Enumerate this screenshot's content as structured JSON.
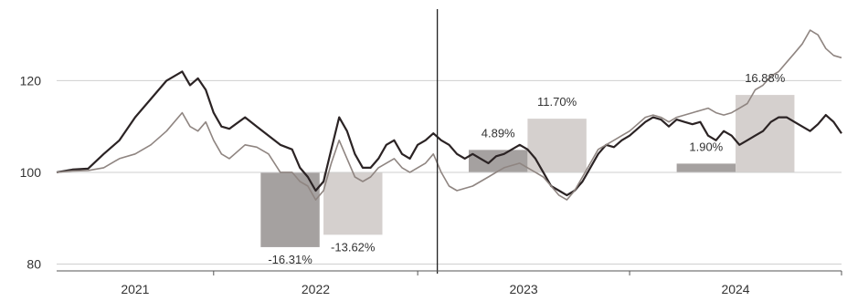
{
  "chart_data": {
    "type": "line",
    "y_ticks": [
      {
        "value": 80,
        "label": "80"
      },
      {
        "value": 100,
        "label": "100"
      },
      {
        "value": 120,
        "label": "120"
      }
    ],
    "ylim": [
      78.5,
      136
    ],
    "x_years": [
      {
        "label": "2021",
        "start": 0,
        "end": 0.2
      },
      {
        "label": "2022",
        "start": 0.2,
        "end": 0.46
      },
      {
        "label": "2023",
        "start": 0.46,
        "end": 0.73
      },
      {
        "label": "2024",
        "start": 0.73,
        "end": 1
      }
    ],
    "split_at": 0.485,
    "grid": true,
    "series": [
      {
        "color": "#2b2324",
        "points": [
          [
            0,
            100
          ],
          [
            0.02,
            100.6
          ],
          [
            0.04,
            100.8
          ],
          [
            0.06,
            104
          ],
          [
            0.08,
            107
          ],
          [
            0.1,
            112
          ],
          [
            0.12,
            116
          ],
          [
            0.14,
            120
          ],
          [
            0.16,
            122
          ],
          [
            0.17,
            119
          ],
          [
            0.18,
            120.5
          ],
          [
            0.19,
            118
          ],
          [
            0.2,
            113
          ],
          [
            0.21,
            110
          ],
          [
            0.22,
            109.5
          ],
          [
            0.24,
            112
          ],
          [
            0.255,
            110
          ],
          [
            0.27,
            108
          ],
          [
            0.285,
            106
          ],
          [
            0.3,
            105
          ],
          [
            0.31,
            101
          ],
          [
            0.32,
            99
          ],
          [
            0.33,
            96
          ],
          [
            0.34,
            98
          ],
          [
            0.35,
            105
          ],
          [
            0.36,
            112
          ],
          [
            0.37,
            109
          ],
          [
            0.38,
            104
          ],
          [
            0.39,
            101
          ],
          [
            0.4,
            101
          ],
          [
            0.41,
            103
          ],
          [
            0.42,
            106
          ],
          [
            0.43,
            107
          ],
          [
            0.44,
            104
          ],
          [
            0.45,
            103
          ],
          [
            0.46,
            106
          ],
          [
            0.47,
            107
          ],
          [
            0.48,
            108.5
          ],
          [
            0.49,
            107
          ],
          [
            0.5,
            106
          ],
          [
            0.51,
            104
          ],
          [
            0.52,
            103
          ],
          [
            0.53,
            104
          ],
          [
            0.54,
            103
          ],
          [
            0.55,
            102
          ],
          [
            0.56,
            103.5
          ],
          [
            0.57,
            104
          ],
          [
            0.58,
            105
          ],
          [
            0.59,
            106
          ],
          [
            0.6,
            105
          ],
          [
            0.61,
            103
          ],
          [
            0.62,
            100
          ],
          [
            0.63,
            97
          ],
          [
            0.64,
            96
          ],
          [
            0.65,
            95
          ],
          [
            0.66,
            96
          ],
          [
            0.67,
            98
          ],
          [
            0.68,
            101
          ],
          [
            0.69,
            104
          ],
          [
            0.7,
            106
          ],
          [
            0.71,
            105.5
          ],
          [
            0.72,
            107
          ],
          [
            0.73,
            108
          ],
          [
            0.74,
            109.5
          ],
          [
            0.75,
            111
          ],
          [
            0.76,
            112
          ],
          [
            0.77,
            111.5
          ],
          [
            0.78,
            110
          ],
          [
            0.79,
            111.5
          ],
          [
            0.8,
            111
          ],
          [
            0.81,
            110.5
          ],
          [
            0.82,
            111
          ],
          [
            0.83,
            108
          ],
          [
            0.84,
            107
          ],
          [
            0.85,
            109
          ],
          [
            0.86,
            108
          ],
          [
            0.87,
            106
          ],
          [
            0.88,
            107
          ],
          [
            0.89,
            108
          ],
          [
            0.9,
            109
          ],
          [
            0.91,
            111
          ],
          [
            0.92,
            112
          ],
          [
            0.93,
            112
          ],
          [
            0.94,
            111
          ],
          [
            0.95,
            110
          ],
          [
            0.96,
            109
          ],
          [
            0.97,
            110.5
          ],
          [
            0.98,
            112.5
          ],
          [
            0.99,
            111
          ],
          [
            1,
            108.5
          ]
        ]
      },
      {
        "color": "#8f8581",
        "points": [
          [
            0,
            100
          ],
          [
            0.02,
            100.3
          ],
          [
            0.04,
            100.4
          ],
          [
            0.06,
            101
          ],
          [
            0.08,
            103
          ],
          [
            0.1,
            104
          ],
          [
            0.12,
            106
          ],
          [
            0.14,
            109
          ],
          [
            0.16,
            113
          ],
          [
            0.17,
            110
          ],
          [
            0.18,
            109
          ],
          [
            0.19,
            111
          ],
          [
            0.2,
            107
          ],
          [
            0.21,
            104
          ],
          [
            0.22,
            103
          ],
          [
            0.24,
            106
          ],
          [
            0.255,
            105.5
          ],
          [
            0.27,
            104
          ],
          [
            0.285,
            100
          ],
          [
            0.3,
            100
          ],
          [
            0.31,
            98
          ],
          [
            0.32,
            97
          ],
          [
            0.33,
            94
          ],
          [
            0.34,
            96
          ],
          [
            0.35,
            102
          ],
          [
            0.36,
            107
          ],
          [
            0.37,
            103
          ],
          [
            0.38,
            99
          ],
          [
            0.39,
            98
          ],
          [
            0.4,
            99
          ],
          [
            0.41,
            101
          ],
          [
            0.42,
            102
          ],
          [
            0.43,
            103
          ],
          [
            0.44,
            101
          ],
          [
            0.45,
            100
          ],
          [
            0.46,
            101
          ],
          [
            0.47,
            102
          ],
          [
            0.48,
            104
          ],
          [
            0.49,
            100
          ],
          [
            0.5,
            97
          ],
          [
            0.51,
            96
          ],
          [
            0.52,
            96.5
          ],
          [
            0.53,
            97
          ],
          [
            0.54,
            98
          ],
          [
            0.55,
            99
          ],
          [
            0.56,
            100
          ],
          [
            0.57,
            101
          ],
          [
            0.58,
            101.5
          ],
          [
            0.59,
            102
          ],
          [
            0.6,
            101
          ],
          [
            0.61,
            100
          ],
          [
            0.62,
            99
          ],
          [
            0.63,
            97
          ],
          [
            0.64,
            95
          ],
          [
            0.65,
            94
          ],
          [
            0.66,
            96
          ],
          [
            0.67,
            99
          ],
          [
            0.68,
            102
          ],
          [
            0.69,
            105
          ],
          [
            0.7,
            106
          ],
          [
            0.71,
            107
          ],
          [
            0.72,
            108
          ],
          [
            0.73,
            109
          ],
          [
            0.74,
            110.5
          ],
          [
            0.75,
            112
          ],
          [
            0.76,
            112.5
          ],
          [
            0.77,
            112
          ],
          [
            0.78,
            111
          ],
          [
            0.79,
            112
          ],
          [
            0.8,
            112.5
          ],
          [
            0.81,
            113
          ],
          [
            0.82,
            113.5
          ],
          [
            0.83,
            114
          ],
          [
            0.84,
            113
          ],
          [
            0.85,
            112.5
          ],
          [
            0.86,
            113
          ],
          [
            0.87,
            114
          ],
          [
            0.88,
            115
          ],
          [
            0.89,
            118
          ],
          [
            0.9,
            119
          ],
          [
            0.91,
            121
          ],
          [
            0.92,
            122
          ],
          [
            0.93,
            124
          ],
          [
            0.94,
            126
          ],
          [
            0.95,
            128
          ],
          [
            0.96,
            131
          ],
          [
            0.97,
            130
          ],
          [
            0.98,
            127
          ],
          [
            0.99,
            125.5
          ],
          [
            1,
            125
          ]
        ]
      }
    ],
    "bars": [
      {
        "x0": 0.26,
        "x1": 0.335,
        "value": -16.31,
        "label": "-16.31%",
        "color": "#a5a1a0",
        "label_pos": "below"
      },
      {
        "x0": 0.34,
        "x1": 0.415,
        "value": -13.62,
        "label": "-13.62%",
        "color": "#d5d0ce",
        "label_pos": "below"
      },
      {
        "x0": 0.525,
        "x1": 0.6,
        "value": 4.89,
        "label": "4.89%",
        "color": "#a5a1a0",
        "label_pos": "above"
      },
      {
        "x0": 0.6,
        "x1": 0.675,
        "value": 11.7,
        "label": "11.70%",
        "color": "#d5d0ce",
        "label_pos": "above"
      },
      {
        "x0": 0.79,
        "x1": 0.865,
        "value": 1.9,
        "label": "1.90%",
        "color": "#a5a1a0",
        "label_pos": "above"
      },
      {
        "x0": 0.865,
        "x1": 0.94,
        "value": 16.88,
        "label": "16.88%",
        "color": "#d5d0ce",
        "label_pos": "above"
      }
    ]
  }
}
